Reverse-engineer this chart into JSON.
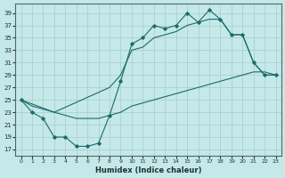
{
  "xlabel": "Humidex (Indice chaleur)",
  "bg_color": "#c5e8e8",
  "grid_color": "#a8cccc",
  "line_color": "#1a6b6b",
  "xlim": [
    -0.5,
    23.5
  ],
  "ylim": [
    16,
    40.5
  ],
  "xticks": [
    0,
    1,
    2,
    3,
    4,
    5,
    6,
    7,
    8,
    9,
    10,
    11,
    12,
    13,
    14,
    15,
    16,
    17,
    18,
    19,
    20,
    21,
    22,
    23
  ],
  "yticks": [
    17,
    19,
    21,
    23,
    25,
    27,
    29,
    31,
    33,
    35,
    37,
    39
  ],
  "curve_x": [
    0,
    1,
    2,
    3,
    4,
    5,
    6,
    7,
    8,
    9,
    10,
    11,
    12,
    13,
    14,
    15,
    16,
    17,
    18,
    19,
    20,
    21,
    22,
    23
  ],
  "curve_y": [
    25,
    23,
    22,
    19,
    19,
    17.5,
    17.5,
    18,
    22.5,
    28,
    34,
    35,
    37,
    36.5,
    37,
    39,
    37.5,
    39.5,
    38,
    35.5,
    35.5,
    31,
    29,
    29
  ],
  "upper_x": [
    0,
    3,
    8,
    9,
    10,
    11,
    12,
    13,
    14,
    15,
    16,
    17,
    18,
    19,
    20,
    21,
    22,
    23
  ],
  "upper_y": [
    25,
    23,
    27,
    29,
    33,
    33.5,
    35,
    35.5,
    36,
    37,
    37.5,
    38,
    38,
    35.5,
    35.5,
    31,
    29,
    29
  ],
  "diag_x": [
    0,
    1,
    2,
    3,
    4,
    5,
    6,
    7,
    8,
    9,
    10,
    11,
    12,
    13,
    14,
    15,
    16,
    17,
    18,
    19,
    20,
    21,
    22,
    23
  ],
  "diag_y": [
    25,
    24,
    23.5,
    23,
    22.5,
    22,
    22,
    22,
    22.5,
    23,
    24,
    24.5,
    25,
    25.5,
    26,
    26.5,
    27,
    27.5,
    28,
    28.5,
    29,
    29.5,
    29.5,
    29
  ]
}
